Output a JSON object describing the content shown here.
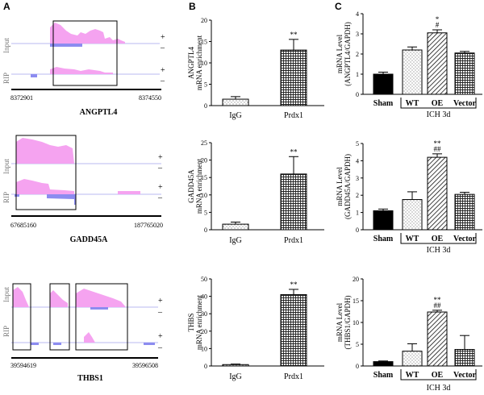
{
  "panels": {
    "a": "A",
    "b": "B",
    "c": "C"
  },
  "colors": {
    "pink": "#f5a3f0",
    "blue": "#8c8cf0",
    "baseline": "#b8b8f0"
  },
  "tracks": [
    {
      "gene": "ANGPTL4",
      "start": "8372901",
      "end": "8374550",
      "input_label": "Input",
      "rip_label": "RIP",
      "plus": "+",
      "minus": "–"
    },
    {
      "gene": "GADD45A",
      "start": "67685160",
      "end": "187765020",
      "input_label": "Input",
      "rip_label": "RIP",
      "plus": "+",
      "minus": "–"
    },
    {
      "gene": "THBS1",
      "start": "39594619",
      "end": "39596508",
      "input_label": "Input",
      "rip_label": "RIP",
      "plus": "+",
      "minus": "–"
    }
  ],
  "chart_data": [
    {
      "id": "b1",
      "type": "bar",
      "ylabel": [
        "ANGPTL4",
        "mRNA enrichment"
      ],
      "categories": [
        "IgG",
        "Prdx1"
      ],
      "values": [
        1.5,
        13.0
      ],
      "errors": [
        0.6,
        2.5
      ],
      "ylim": [
        0,
        20
      ],
      "yticks": [
        0,
        5,
        10,
        15,
        20
      ],
      "annotations": [
        "",
        "**"
      ]
    },
    {
      "id": "b2",
      "type": "bar",
      "ylabel": [
        "GADD45A",
        "mRNA enrichment"
      ],
      "categories": [
        "IgG",
        "Prdx1"
      ],
      "values": [
        1.6,
        16.0
      ],
      "errors": [
        0.6,
        5.0
      ],
      "ylim": [
        0,
        25
      ],
      "yticks": [
        0,
        5,
        10,
        15,
        20,
        25
      ],
      "annotations": [
        "",
        "**"
      ]
    },
    {
      "id": "b3",
      "type": "bar",
      "ylabel": [
        "THBS",
        "mRNA enrichment"
      ],
      "categories": [
        "IgG",
        "Prdx1"
      ],
      "values": [
        0.8,
        41.0
      ],
      "errors": [
        0.3,
        3.0
      ],
      "ylim": [
        0,
        50
      ],
      "yticks": [
        0,
        10,
        20,
        30,
        40,
        50
      ],
      "annotations": [
        "",
        "**"
      ]
    },
    {
      "id": "c1",
      "type": "bar",
      "ylabel": [
        "mRNA Level",
        "(ANGPTL4/GAPDH)"
      ],
      "categories": [
        "Sham",
        "WT",
        "OE",
        "Vector"
      ],
      "values": [
        1.0,
        2.2,
        3.05,
        2.05
      ],
      "errors": [
        0.1,
        0.15,
        0.15,
        0.08
      ],
      "ylim": [
        0,
        4
      ],
      "yticks": [
        0,
        1,
        2,
        3,
        4
      ],
      "annotations": [
        "",
        "",
        "*\n#",
        ""
      ],
      "group_label": "ICH 3d"
    },
    {
      "id": "c2",
      "type": "bar",
      "ylabel": [
        "mRNA Level",
        "(GADD45A/GAPDH)"
      ],
      "categories": [
        "Sham",
        "WT",
        "OE",
        "Vector"
      ],
      "values": [
        1.1,
        1.75,
        4.2,
        2.05
      ],
      "errors": [
        0.1,
        0.45,
        0.2,
        0.12
      ],
      "ylim": [
        0,
        5
      ],
      "yticks": [
        0,
        1,
        2,
        3,
        4,
        5
      ],
      "annotations": [
        "",
        "",
        "**\n##",
        ""
      ],
      "group_label": "ICH 3d"
    },
    {
      "id": "c3",
      "type": "bar",
      "ylabel": [
        "mRNA Level",
        "(THBS1/GAPDH)"
      ],
      "categories": [
        "Sham",
        "WT",
        "OE",
        "Vector"
      ],
      "values": [
        1.0,
        3.4,
        12.4,
        3.8
      ],
      "errors": [
        0.15,
        1.7,
        0.4,
        3.2
      ],
      "ylim": [
        0,
        20
      ],
      "yticks": [
        0,
        5,
        10,
        15,
        20
      ],
      "annotations": [
        "",
        "",
        "**\n##",
        ""
      ],
      "group_label": "ICH 3d"
    }
  ]
}
